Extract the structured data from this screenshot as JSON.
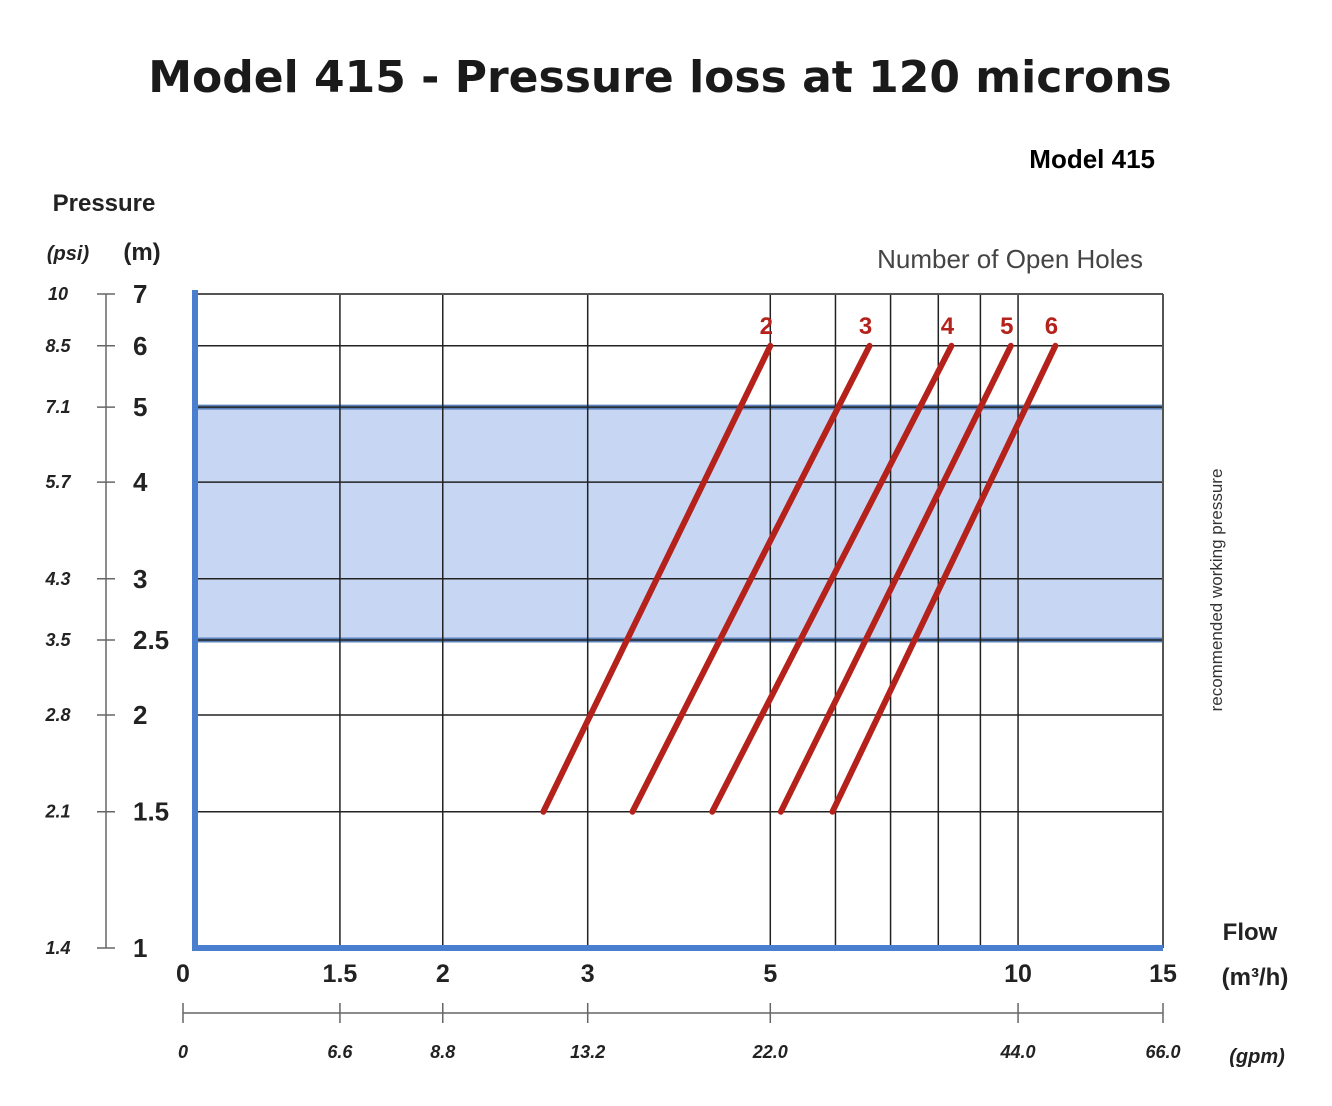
{
  "colors": {
    "series": "#b5221c",
    "band_fill": "#c7d7f3",
    "band_edge": "#5b82bb",
    "axis_blue": "#4a7fd0",
    "grid": "#222222"
  },
  "chart_data": {
    "type": "line",
    "title": "Model 415 - Pressure loss at 120 microns",
    "subtitle": "Model 415",
    "legend_title": "Number of Open Holes",
    "y_axis": {
      "title": "Pressure",
      "unit_primary": "(m)",
      "unit_secondary": "(psi)",
      "range": [
        1,
        7
      ],
      "scale": "log",
      "ticks_m": [
        "1",
        "1.5",
        "2",
        "2.5",
        "3",
        "4",
        "5",
        "6",
        "7"
      ],
      "ticks_psi": [
        "1.4",
        "2.1",
        "2.8",
        "3.5",
        "4.3",
        "5.7",
        "7.1",
        "8.5",
        "10"
      ]
    },
    "x_axis": {
      "title": "Flow",
      "unit_primary": "(m³/h)",
      "unit_secondary": "(gpm)",
      "range": [
        1,
        15
      ],
      "scale": "log",
      "ticks_m3h": [
        "0",
        "1.5",
        "2",
        "3",
        "5",
        "10",
        "15"
      ],
      "ticks_gpm": [
        "0",
        "6.6",
        "8.8",
        "13.2",
        "22.0",
        "44.0",
        "66.0"
      ]
    },
    "grid": true,
    "shaded_band": {
      "label": "recommended working pressure",
      "y_range": [
        2.5,
        5
      ]
    },
    "series": [
      {
        "name": "2",
        "points": [
          [
            2.65,
            1.5
          ],
          [
            5.0,
            6.0
          ]
        ]
      },
      {
        "name": "3",
        "points": [
          [
            3.4,
            1.5
          ],
          [
            6.6,
            6.0
          ]
        ]
      },
      {
        "name": "4",
        "points": [
          [
            4.25,
            1.5
          ],
          [
            8.3,
            6.0
          ]
        ]
      },
      {
        "name": "5",
        "points": [
          [
            5.15,
            1.5
          ],
          [
            9.8,
            6.0
          ]
        ]
      },
      {
        "name": "6",
        "points": [
          [
            5.95,
            1.5
          ],
          [
            11.1,
            6.0
          ]
        ]
      }
    ]
  }
}
